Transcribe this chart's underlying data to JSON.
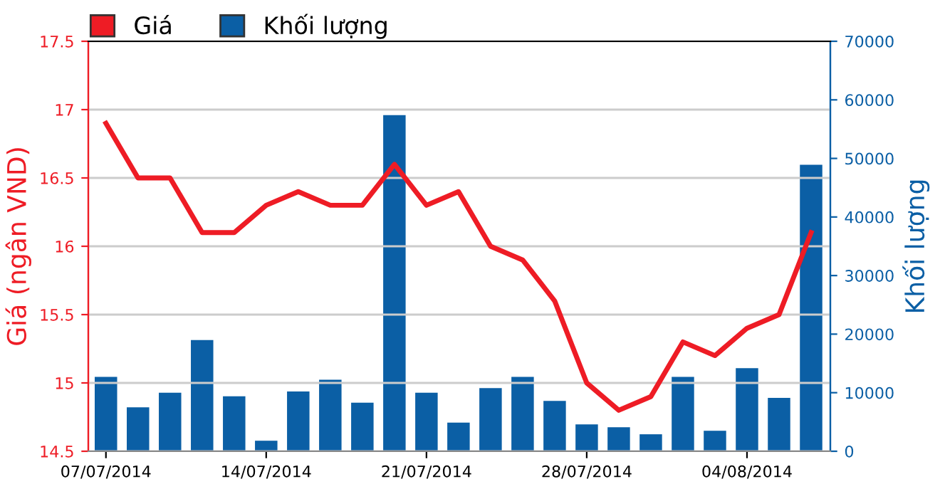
{
  "chart_data": {
    "type": "bar",
    "ylabel": "Giá (ngân VND)",
    "y2label": "Khối lượng",
    "categories": [
      "07/07/2014",
      null,
      null,
      null,
      null,
      "14/07/2014",
      null,
      null,
      null,
      null,
      "21/07/2014",
      null,
      null,
      null,
      null,
      "28/07/2014",
      null,
      null,
      null,
      null,
      "04/08/2014",
      null,
      null
    ],
    "series": [
      {
        "name": "Giá",
        "type": "line",
        "color": "#ee1c25",
        "values": [
          16.9,
          16.5,
          16.5,
          16.1,
          16.1,
          16.3,
          16.4,
          16.3,
          16.3,
          16.6,
          16.3,
          16.4,
          16.0,
          15.9,
          15.6,
          15.0,
          14.8,
          14.9,
          15.3,
          15.2,
          15.4,
          15.5,
          16.1
        ]
      },
      {
        "name": "Khối lượng",
        "axis": "y2",
        "color": "#0b5fa5",
        "values": [
          12700,
          7500,
          10000,
          19000,
          9400,
          1800,
          10200,
          12200,
          8300,
          57400,
          10000,
          4900,
          10800,
          12700,
          8600,
          4600,
          4100,
          2900,
          12700,
          3500,
          14200,
          9100,
          48900
        ]
      }
    ],
    "ylim": [
      14.5,
      17.5
    ],
    "yticks": [
      14.5,
      15,
      15.5,
      16,
      16.5,
      17,
      17.5
    ],
    "y2lim": [
      0,
      70000
    ],
    "y2ticks": [
      0,
      10000,
      20000,
      30000,
      40000,
      50000,
      60000,
      70000
    ],
    "grid": "y",
    "legend": "top left",
    "marker": "none",
    "line_style": "solid"
  }
}
